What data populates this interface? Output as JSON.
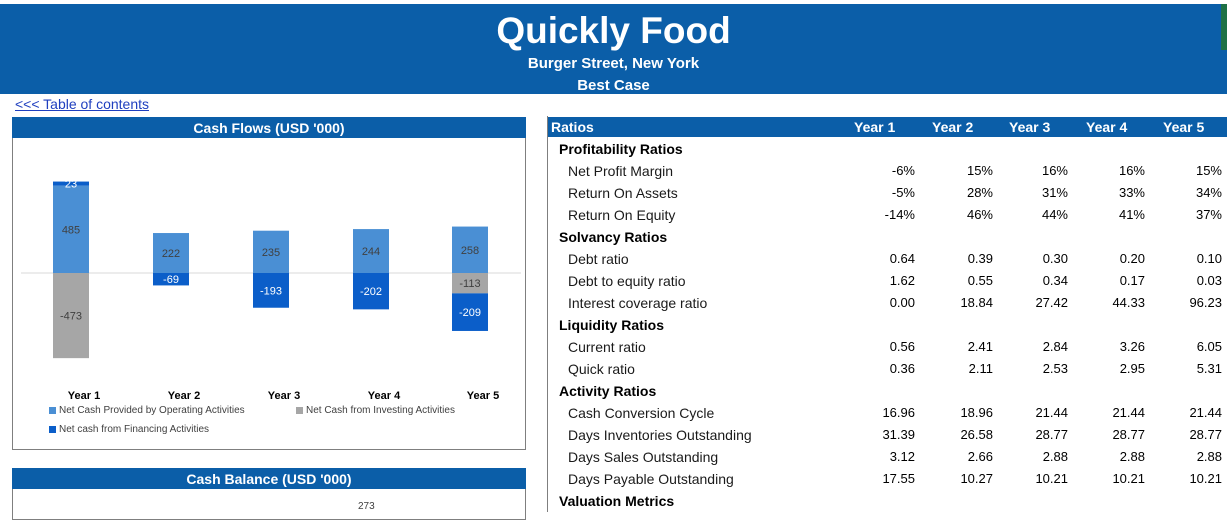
{
  "header": {
    "company": "Quickly Food",
    "address": "Burger Street, New York",
    "scenario": "Best Case"
  },
  "toc_link": "<<< Table of contents",
  "cash_flows": {
    "title": "Cash Flows (USD '000)",
    "chart_data": {
      "type": "bar",
      "categories": [
        "Year 1",
        "Year 2",
        "Year 3",
        "Year 4",
        "Year 5"
      ],
      "series": [
        {
          "name": "Net Cash Provided by Operating Activities",
          "color": "#4a8fd4",
          "values": [
            485,
            222,
            235,
            244,
            258
          ]
        },
        {
          "name": "Net Cash from Investing Activities",
          "color": "#a6a6a6",
          "values": [
            -473,
            0,
            0,
            0,
            -113
          ]
        },
        {
          "name": "Net cash from Financing Activities",
          "color": "#0b5ec9",
          "values": [
            23,
            -69,
            -193,
            -202,
            -209
          ]
        }
      ]
    },
    "legend": [
      {
        "label": "Net Cash Provided by Operating Activities",
        "color": "#4a8fd4"
      },
      {
        "label": "Net Cash from Investing Activities",
        "color": "#a6a6a6"
      },
      {
        "label": "Net cash from Financing Activities",
        "color": "#0b5ec9"
      }
    ]
  },
  "cash_balance": {
    "title": "Cash Balance (USD '000)",
    "partial_value": "273"
  },
  "ratios": {
    "header": "Ratios",
    "years": [
      "Year 1",
      "Year 2",
      "Year 3",
      "Year 4",
      "Year 5"
    ],
    "rows": [
      {
        "kind": "section",
        "label": "Profitability Ratios"
      },
      {
        "kind": "item",
        "label": "Net Profit Margin",
        "values": [
          "-6%",
          "15%",
          "16%",
          "16%",
          "15%"
        ]
      },
      {
        "kind": "item",
        "label": "Return On Assets",
        "values": [
          "-5%",
          "28%",
          "31%",
          "33%",
          "34%"
        ]
      },
      {
        "kind": "item",
        "label": "Return On Equity",
        "values": [
          "-14%",
          "46%",
          "44%",
          "41%",
          "37%"
        ]
      },
      {
        "kind": "section",
        "label": "Solvancy Ratios"
      },
      {
        "kind": "item",
        "label": "Debt ratio",
        "values": [
          "0.64",
          "0.39",
          "0.30",
          "0.20",
          "0.10"
        ]
      },
      {
        "kind": "item",
        "label": "Debt to equity ratio",
        "values": [
          "1.62",
          "0.55",
          "0.34",
          "0.17",
          "0.03"
        ]
      },
      {
        "kind": "item",
        "label": "Interest coverage ratio",
        "values": [
          "0.00",
          "18.84",
          "27.42",
          "44.33",
          "96.23"
        ]
      },
      {
        "kind": "section",
        "label": "Liquidity Ratios"
      },
      {
        "kind": "item",
        "label": "Current ratio",
        "values": [
          "0.56",
          "2.41",
          "2.84",
          "3.26",
          "6.05"
        ]
      },
      {
        "kind": "item",
        "label": "Quick ratio",
        "values": [
          "0.36",
          "2.11",
          "2.53",
          "2.95",
          "5.31"
        ]
      },
      {
        "kind": "section",
        "label": "Activity Ratios"
      },
      {
        "kind": "item",
        "label": "Cash Conversion Cycle",
        "values": [
          "16.96",
          "18.96",
          "21.44",
          "21.44",
          "21.44"
        ]
      },
      {
        "kind": "item",
        "label": "Days Inventories Outstanding",
        "values": [
          "31.39",
          "26.58",
          "28.77",
          "28.77",
          "28.77"
        ]
      },
      {
        "kind": "item",
        "label": "Days Sales Outstanding",
        "values": [
          "3.12",
          "2.66",
          "2.88",
          "2.88",
          "2.88"
        ]
      },
      {
        "kind": "item",
        "label": "Days Payable Outstanding",
        "values": [
          "17.55",
          "10.27",
          "10.21",
          "10.21",
          "10.21"
        ]
      },
      {
        "kind": "section",
        "label": "Valuation Metrics"
      }
    ]
  }
}
